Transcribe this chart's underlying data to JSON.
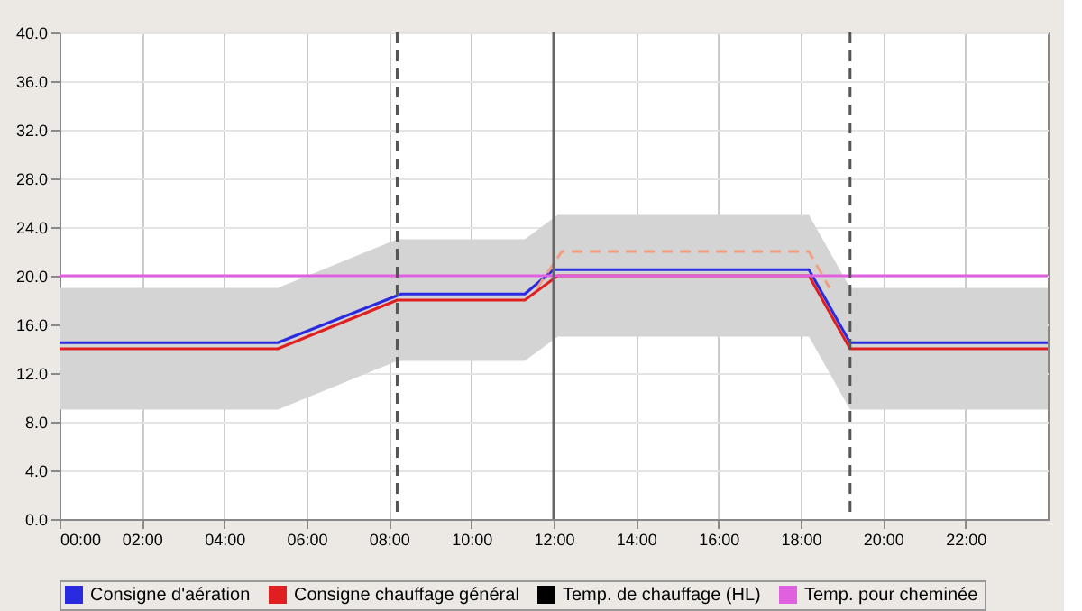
{
  "chart_data": {
    "type": "line",
    "xlim": [
      0,
      24
    ],
    "xticks": [
      {
        "value": 0,
        "label": "00:00"
      },
      {
        "value": 2,
        "label": "02:00"
      },
      {
        "value": 4,
        "label": "04:00"
      },
      {
        "value": 6,
        "label": "06:00"
      },
      {
        "value": 8,
        "label": "08:00"
      },
      {
        "value": 10,
        "label": "10:00"
      },
      {
        "value": 12,
        "label": "12:00"
      },
      {
        "value": 14,
        "label": "14:00"
      },
      {
        "value": 16,
        "label": "16:00"
      },
      {
        "value": 18,
        "label": "18:00"
      },
      {
        "value": 20,
        "label": "20:00"
      },
      {
        "value": 22,
        "label": "22:00"
      }
    ],
    "ylim": [
      0,
      40
    ],
    "yticks": [
      {
        "value": 0,
        "label": "0.0"
      },
      {
        "value": 4,
        "label": "4.0"
      },
      {
        "value": 8,
        "label": "8.0"
      },
      {
        "value": 12,
        "label": "12.0"
      },
      {
        "value": 16,
        "label": "16.0"
      },
      {
        "value": 20,
        "label": "20.0"
      },
      {
        "value": 24,
        "label": "24.0"
      },
      {
        "value": 28,
        "label": "28.0"
      },
      {
        "value": 32,
        "label": "32.0"
      },
      {
        "value": 36,
        "label": "36.0"
      },
      {
        "value": 40,
        "label": "40.0"
      }
    ],
    "grid": true,
    "legend": "bottom",
    "marker": "none",
    "series": [
      {
        "name": "Consigne d'aération",
        "color": "#2a2ae0",
        "x": [
          0,
          5.3,
          8.3,
          11.3,
          12.0,
          18.2,
          19.2,
          24
        ],
        "values": [
          14.5,
          14.5,
          18.5,
          18.5,
          20.5,
          20.5,
          14.5,
          14.5
        ]
      },
      {
        "name": "Consigne chauffage général",
        "color": "#e02020",
        "x": [
          0,
          5.3,
          8.2,
          11.3,
          12.1,
          18.2,
          19.2,
          24
        ],
        "values": [
          14,
          14,
          18,
          18,
          20,
          20,
          14,
          14
        ],
        "lower": [
          9,
          9,
          13,
          13,
          15,
          15,
          9,
          9
        ],
        "upper": [
          19,
          19,
          23,
          23,
          25,
          25,
          19,
          19
        ]
      },
      {
        "name": "Temp. de chauffage (HL)",
        "color": "#000000"
      },
      {
        "name": "Temp. pour cheminée",
        "color": "#e060e0",
        "x": [
          0,
          24
        ],
        "values": [
          20,
          20
        ]
      },
      {
        "color": "#f0a080",
        "line_style": "dashed",
        "x": [
          11.6,
          12.2,
          18.2,
          18.7
        ],
        "values": [
          19,
          22,
          22,
          19
        ]
      }
    ],
    "ref_lines": [
      {
        "axis": "x",
        "value": 8.2,
        "line_style": "dashed",
        "color": "#555555"
      },
      {
        "axis": "x",
        "value": 12,
        "line_style": "solid",
        "color": "#666666"
      },
      {
        "axis": "x",
        "value": 19.2,
        "line_style": "dashed",
        "color": "#555555"
      }
    ]
  }
}
